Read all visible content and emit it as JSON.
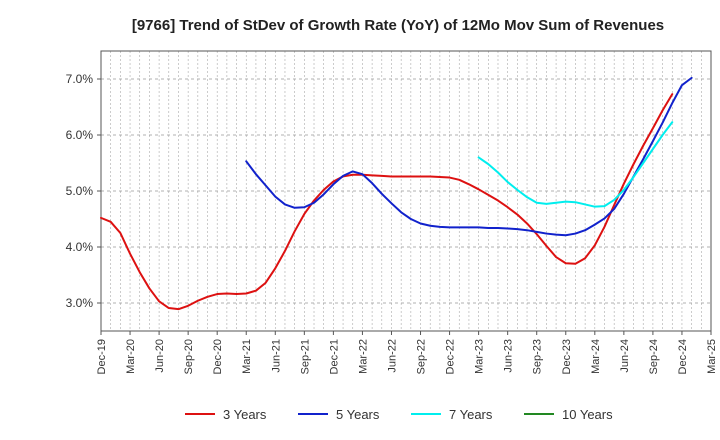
{
  "chart_data": {
    "type": "line",
    "title": "[9766]  Trend of StDev of Growth Rate (YoY) of 12Mo Mov Sum of Revenues",
    "xlabel": "",
    "ylabel": "",
    "ylim": [
      2.5,
      7.5
    ],
    "yticks": [
      3.0,
      4.0,
      5.0,
      6.0,
      7.0
    ],
    "ytick_labels": [
      "3.0%",
      "4.0%",
      "5.0%",
      "6.0%",
      "7.0%"
    ],
    "x_start": "Dec-19",
    "x_end": "Mar-25",
    "xtick_labels": [
      "Dec-19",
      "Mar-20",
      "Jun-20",
      "Sep-20",
      "Dec-20",
      "Mar-21",
      "Jun-21",
      "Sep-21",
      "Dec-21",
      "Mar-22",
      "Jun-22",
      "Sep-22",
      "Dec-22",
      "Mar-23",
      "Jun-23",
      "Sep-23",
      "Dec-23",
      "Mar-24",
      "Jun-24",
      "Sep-24",
      "Dec-24",
      "Mar-25"
    ],
    "grid": true,
    "legend_position": "bottom",
    "series": [
      {
        "name": "3 Years",
        "color": "#dd1111",
        "start_index": 0,
        "values": [
          4.52,
          4.45,
          4.25,
          3.88,
          3.55,
          3.26,
          3.03,
          2.91,
          2.89,
          2.95,
          3.04,
          3.11,
          3.16,
          3.17,
          3.16,
          3.17,
          3.22,
          3.36,
          3.62,
          3.93,
          4.28,
          4.59,
          4.83,
          5.02,
          5.17,
          5.26,
          5.29,
          5.29,
          5.28,
          5.27,
          5.26,
          5.26,
          5.26,
          5.26,
          5.26,
          5.25,
          5.24,
          5.2,
          5.12,
          5.03,
          4.93,
          4.83,
          4.71,
          4.58,
          4.42,
          4.23,
          4.02,
          3.82,
          3.71,
          3.7,
          3.8,
          4.03,
          4.36,
          4.75,
          5.13,
          5.48,
          5.81,
          6.12,
          6.44,
          6.73
        ]
      },
      {
        "name": "5 Years",
        "color": "#1122cc",
        "start_index": 15,
        "values": [
          5.53,
          5.3,
          5.1,
          4.9,
          4.76,
          4.7,
          4.71,
          4.79,
          4.94,
          5.12,
          5.27,
          5.35,
          5.3,
          5.14,
          4.95,
          4.78,
          4.62,
          4.5,
          4.42,
          4.38,
          4.36,
          4.35,
          4.35,
          4.35,
          4.35,
          4.34,
          4.34,
          4.33,
          4.32,
          4.3,
          4.27,
          4.24,
          4.22,
          4.21,
          4.24,
          4.3,
          4.4,
          4.51,
          4.68,
          4.95,
          5.26,
          5.57,
          5.89,
          6.22,
          6.57,
          6.89,
          7.02
        ]
      },
      {
        "name": "7 Years",
        "color": "#00eeee",
        "start_index": 39,
        "values": [
          5.6,
          5.48,
          5.33,
          5.16,
          5.02,
          4.89,
          4.79,
          4.77,
          4.79,
          4.81,
          4.8,
          4.76,
          4.72,
          4.73,
          4.84,
          5.02,
          5.25,
          5.5,
          5.75,
          6.0,
          6.23
        ]
      },
      {
        "name": "10 Years",
        "color": "#228822",
        "start_index": 0,
        "values": []
      }
    ]
  }
}
